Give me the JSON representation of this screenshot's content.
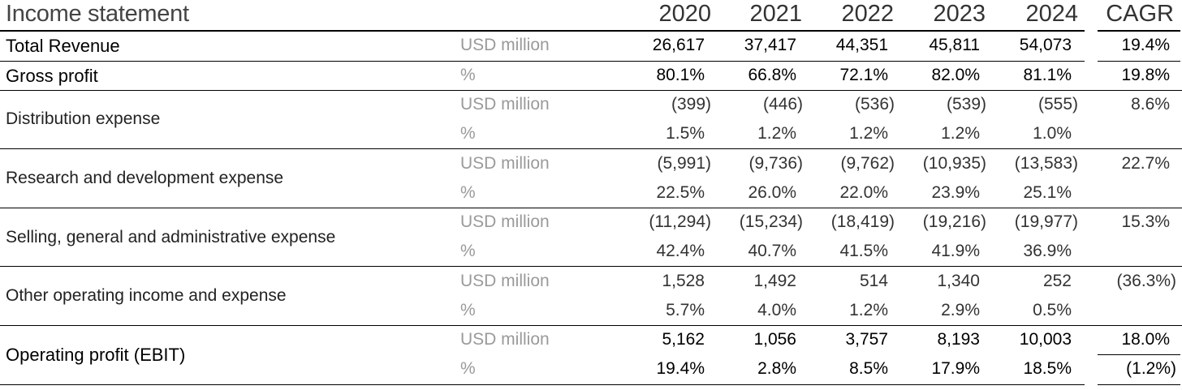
{
  "title": "Income statement",
  "years": [
    "2020",
    "2021",
    "2022",
    "2023",
    "2024"
  ],
  "cagr_header": "CAGR",
  "rows": {
    "total_revenue": {
      "label": "Total Revenue",
      "unit": "USD million",
      "values": [
        "26,617",
        "37,417",
        "44,351",
        "45,811",
        "54,073"
      ],
      "cagr": "19.4%"
    },
    "gross_profit": {
      "label": "Gross profit",
      "unit": "%",
      "values": [
        "80.1%",
        "66.8%",
        "72.1%",
        "82.0%",
        "81.1%"
      ],
      "cagr": "19.8%"
    },
    "distribution": {
      "label": "Distribution expense",
      "unit_usd": "USD million",
      "usd": [
        "(399)",
        "(446)",
        "(536)",
        "(539)",
        "(555)"
      ],
      "unit_pct": "%",
      "pct": [
        "1.5%",
        "1.2%",
        "1.2%",
        "1.2%",
        "1.0%"
      ],
      "cagr": "8.6%"
    },
    "rnd": {
      "label": "Research and development expense",
      "unit_usd": "USD million",
      "usd": [
        "(5,991)",
        "(9,736)",
        "(9,762)",
        "(10,935)",
        "(13,583)"
      ],
      "unit_pct": "%",
      "pct": [
        "22.5%",
        "26.0%",
        "22.0%",
        "23.9%",
        "25.1%"
      ],
      "cagr": "22.7%"
    },
    "sga": {
      "label": "Selling, general and administrative expense",
      "unit_usd": "USD million",
      "usd": [
        "(11,294)",
        "(15,234)",
        "(18,419)",
        "(19,216)",
        "(19,977)"
      ],
      "unit_pct": "%",
      "pct": [
        "42.4%",
        "40.7%",
        "41.5%",
        "41.9%",
        "36.9%"
      ],
      "cagr": "15.3%"
    },
    "other": {
      "label": "Other operating income and expense",
      "unit_usd": "USD million",
      "usd": [
        "1,528",
        "1,492",
        "514",
        "1,340",
        "252"
      ],
      "unit_pct": "%",
      "pct": [
        "5.7%",
        "4.0%",
        "1.2%",
        "2.9%",
        "0.5%"
      ],
      "cagr": "(36.3%)"
    },
    "ebit": {
      "label": "Operating profit (EBIT)",
      "unit_usd": "USD million",
      "usd": [
        "5,162",
        "1,056",
        "3,757",
        "8,193",
        "10,003"
      ],
      "unit_pct": "%",
      "pct": [
        "19.4%",
        "2.8%",
        "8.5%",
        "17.9%",
        "18.5%"
      ],
      "cagr_usd": "18.0%",
      "cagr_pct": "(1.2%)"
    }
  }
}
